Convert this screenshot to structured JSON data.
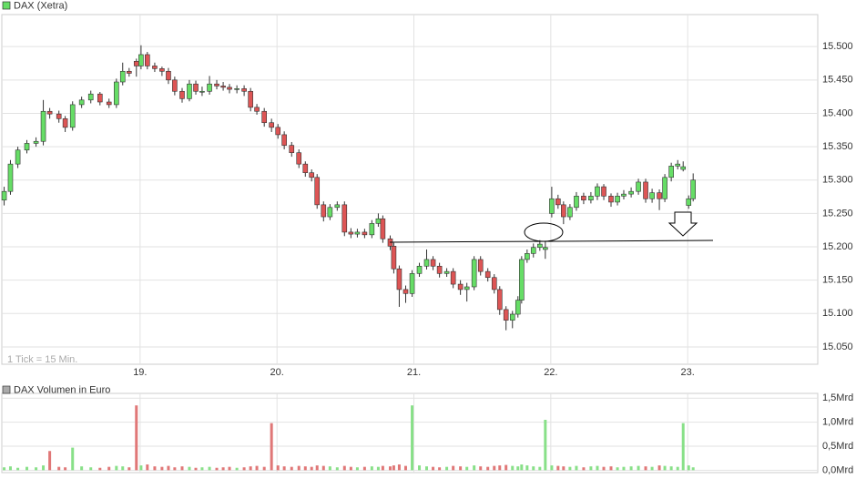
{
  "chart_data": [
    {
      "type": "candlestick",
      "title": "DAX (Xetra)",
      "annotation": "1 Tick = 15 Min.",
      "x": [
        18.007,
        18.053,
        18.107,
        18.173,
        18.24,
        18.293,
        18.34,
        18.407,
        18.453,
        18.507,
        18.573,
        18.64,
        18.707,
        18.773,
        18.827,
        18.873,
        18.92,
        18.973,
        19.007,
        19.053,
        19.107,
        19.16,
        19.207,
        19.253,
        19.307,
        19.36,
        19.407,
        19.453,
        19.507,
        19.56,
        19.607,
        19.653,
        19.707,
        19.76,
        19.807,
        19.853,
        19.907,
        19.96,
        20.007,
        20.053,
        20.107,
        20.16,
        20.207,
        20.253,
        20.293,
        20.34,
        20.387,
        20.44,
        20.493,
        20.54,
        20.587,
        20.64,
        20.693,
        20.74,
        20.773,
        20.827,
        20.853,
        20.893,
        20.94,
        20.987,
        21.04,
        21.093,
        21.14,
        21.187,
        21.24,
        21.287,
        21.34,
        21.387,
        21.44,
        21.487,
        21.54,
        21.587,
        21.627,
        21.673,
        21.72,
        21.76,
        21.787,
        21.827,
        21.873,
        21.92,
        21.96,
        22.007,
        22.053,
        22.093,
        22.14,
        22.187,
        22.24,
        22.293,
        22.34,
        22.387,
        22.44,
        22.487,
        22.533,
        22.587,
        22.64,
        22.693,
        22.74,
        22.793,
        22.833,
        22.88,
        22.927,
        22.967,
        23.007,
        23.04
      ],
      "open": [
        15270,
        15283,
        15324,
        15345,
        15355,
        15358,
        15403,
        15399,
        15392,
        15379,
        15413,
        15420,
        15429,
        15417,
        15413,
        15447,
        15463,
        15478,
        15471,
        15488,
        15471,
        15467,
        15463,
        15450,
        15433,
        15422,
        15444,
        15433,
        15433,
        15444,
        15441,
        15439,
        15436,
        15437,
        15433,
        15409,
        15403,
        15386,
        15379,
        15368,
        15352,
        15341,
        15324,
        15311,
        15304,
        15263,
        15245,
        15259,
        15263,
        15222,
        15219,
        15222,
        15218,
        15235,
        15242,
        15212,
        15201,
        15167,
        15136,
        15130,
        15160,
        15171,
        15181,
        15171,
        15160,
        15163,
        15144,
        15136,
        15140,
        15181,
        15163,
        15154,
        15136,
        15106,
        15090,
        15099,
        15120,
        15181,
        15190,
        15199,
        15196,
        15250,
        15272,
        15263,
        15245,
        15259,
        15276,
        15270,
        15276,
        15290,
        15276,
        15267,
        15276,
        15279,
        15283,
        15297,
        15272,
        15281,
        15272,
        15304,
        15321,
        15316,
        15262,
        15272
      ],
      "high": [
        15290,
        15330,
        15350,
        15360,
        15364,
        15420,
        15408,
        15404,
        15396,
        15418,
        15425,
        15434,
        15432,
        15422,
        15452,
        15476,
        15468,
        15482,
        15502,
        15492,
        15476,
        15470,
        15468,
        15455,
        15438,
        15450,
        15449,
        15440,
        15456,
        15450,
        15447,
        15444,
        15442,
        15442,
        15438,
        15414,
        15408,
        15392,
        15384,
        15373,
        15357,
        15346,
        15328,
        15316,
        15309,
        15268,
        15264,
        15268,
        15268,
        15228,
        15227,
        15227,
        15240,
        15250,
        15247,
        15217,
        15206,
        15172,
        15142,
        15165,
        15176,
        15196,
        15186,
        15176,
        15168,
        15168,
        15150,
        15146,
        15186,
        15186,
        15168,
        15159,
        15141,
        15111,
        15104,
        15126,
        15186,
        15196,
        15205,
        15210,
        15208,
        15290,
        15278,
        15268,
        15264,
        15282,
        15281,
        15282,
        15295,
        15294,
        15280,
        15281,
        15285,
        15289,
        15302,
        15302,
        15287,
        15286,
        15309,
        15326,
        15330,
        15328,
        15277,
        15310
      ],
      "low": [
        15262,
        15278,
        15318,
        15340,
        15350,
        15352,
        15392,
        15386,
        15372,
        15374,
        15408,
        15415,
        15412,
        15408,
        15408,
        15442,
        15455,
        15455,
        15466,
        15466,
        15462,
        15456,
        15444,
        15427,
        15416,
        15418,
        15428,
        15426,
        15428,
        15436,
        15434,
        15430,
        15430,
        15426,
        15403,
        15398,
        15380,
        15372,
        15362,
        15346,
        15335,
        15318,
        15305,
        15298,
        15257,
        15238,
        15240,
        15254,
        15216,
        15213,
        15214,
        15213,
        15213,
        15230,
        15206,
        15195,
        15160,
        15110,
        15116,
        15125,
        15155,
        15166,
        15165,
        15154,
        15155,
        15138,
        15128,
        15118,
        15135,
        15157,
        15148,
        15130,
        15098,
        15075,
        15078,
        15094,
        15115,
        15176,
        15184,
        15194,
        15182,
        15244,
        15257,
        15234,
        15240,
        15254,
        15264,
        15265,
        15270,
        15270,
        15260,
        15262,
        15271,
        15274,
        15278,
        15266,
        15266,
        15255,
        15267,
        15298,
        15316,
        15313,
        15257,
        15268
      ],
      "close": [
        15283,
        15324,
        15345,
        15355,
        15358,
        15403,
        15399,
        15392,
        15379,
        15413,
        15420,
        15429,
        15417,
        15413,
        15447,
        15463,
        15460,
        15471,
        15488,
        15471,
        15467,
        15463,
        15450,
        15433,
        15422,
        15444,
        15433,
        15433,
        15444,
        15441,
        15439,
        15436,
        15437,
        15433,
        15409,
        15403,
        15386,
        15379,
        15368,
        15352,
        15341,
        15324,
        15311,
        15304,
        15263,
        15245,
        15259,
        15263,
        15222,
        15219,
        15222,
        15218,
        15235,
        15242,
        15212,
        15201,
        15167,
        15136,
        15130,
        15160,
        15171,
        15181,
        15171,
        15160,
        15163,
        15144,
        15136,
        15140,
        15181,
        15163,
        15154,
        15136,
        15106,
        15090,
        15099,
        15120,
        15181,
        15190,
        15199,
        15204,
        15199,
        15272,
        15263,
        15245,
        15259,
        15276,
        15270,
        15276,
        15290,
        15276,
        15267,
        15276,
        15279,
        15283,
        15297,
        15272,
        15281,
        15272,
        15304,
        15321,
        15324,
        15320,
        15272,
        15300
      ],
      "up_color": "#66dd66",
      "down_color": "#dd5555",
      "xlim": [
        17.99,
        23.95
      ],
      "xticks": [
        {
          "value": 19,
          "label": "19."
        },
        {
          "value": 20,
          "label": "20."
        },
        {
          "value": 21,
          "label": "21."
        },
        {
          "value": 22,
          "label": "22."
        },
        {
          "value": 23,
          "label": "23."
        }
      ],
      "ylim": [
        15024,
        15548
      ],
      "yticks": [
        {
          "value": 15050,
          "label": "15.050"
        },
        {
          "value": 15100,
          "label": "15.100"
        },
        {
          "value": 15150,
          "label": "15.150"
        },
        {
          "value": 15200,
          "label": "15.200"
        },
        {
          "value": 15250,
          "label": "15.250"
        },
        {
          "value": 15300,
          "label": "15.300"
        },
        {
          "value": 15350,
          "label": "15.350"
        },
        {
          "value": 15400,
          "label": "15.400"
        },
        {
          "value": 15450,
          "label": "15.450"
        },
        {
          "value": 15500,
          "label": "15.500"
        }
      ],
      "grid": true
    },
    {
      "type": "bar",
      "title": "DAX Volumen in Euro",
      "values": [
        0.06,
        0.08,
        0.05,
        0.07,
        0.06,
        0.1,
        0.4,
        0.07,
        0.06,
        0.47,
        0.08,
        0.06,
        0.05,
        0.07,
        0.09,
        0.08,
        0.06,
        1.35,
        0.1,
        0.12,
        0.08,
        0.07,
        0.09,
        0.06,
        0.08,
        0.07,
        0.05,
        0.06,
        0.07,
        0.05,
        0.06,
        0.07,
        0.05,
        0.06,
        0.08,
        0.09,
        0.07,
        0.98,
        0.1,
        0.08,
        0.07,
        0.09,
        0.08,
        0.07,
        0.1,
        0.09,
        0.08,
        0.06,
        0.09,
        0.07,
        0.06,
        0.07,
        0.08,
        0.07,
        0.09,
        0.08,
        0.1,
        0.12,
        0.09,
        1.35,
        0.1,
        0.08,
        0.07,
        0.06,
        0.07,
        0.09,
        0.08,
        0.07,
        0.1,
        0.08,
        0.07,
        0.09,
        0.1,
        0.11,
        0.09,
        0.08,
        0.12,
        0.1,
        0.08,
        0.07,
        1.05,
        0.1,
        0.09,
        0.08,
        0.07,
        0.09,
        0.06,
        0.08,
        0.09,
        0.07,
        0.08,
        0.06,
        0.07,
        0.08,
        0.09,
        0.08,
        0.07,
        0.1,
        0.09,
        0.08,
        0.07,
        0.98,
        0.1,
        0.06
      ],
      "up_color": "#88e088",
      "down_color": "#e07777",
      "ylim": [
        -0.05,
        1.6
      ],
      "yticks": [
        {
          "value": 0,
          "label": "0,0Mrd"
        },
        {
          "value": 0.5,
          "label": "0,5Mrd"
        },
        {
          "value": 1,
          "label": "1,0Mrd"
        },
        {
          "value": 1.5,
          "label": "1,5Mrd"
        }
      ],
      "grid": true
    }
  ]
}
